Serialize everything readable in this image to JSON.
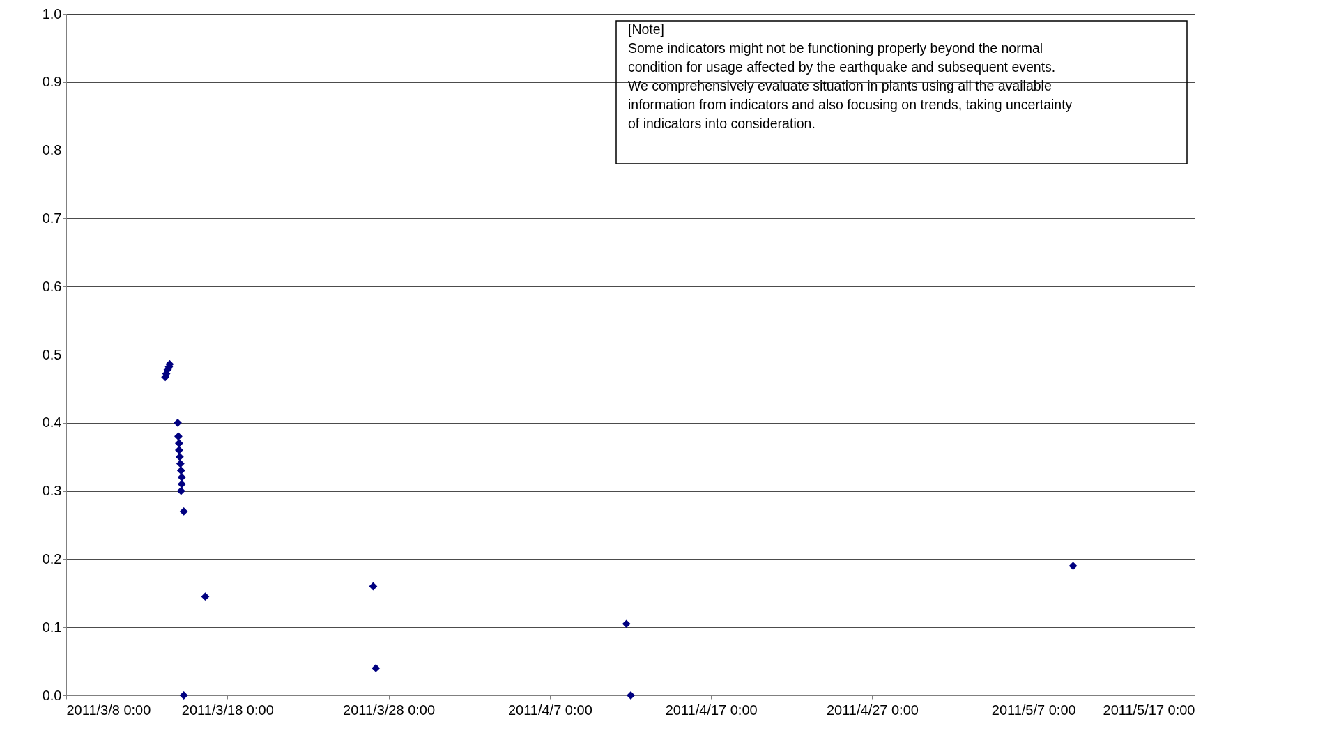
{
  "chart_data": {
    "type": "scatter",
    "marker": "diamond",
    "grid": "y",
    "x": [
      "2011-03-14T03:30",
      "2011-03-14T05:00",
      "2011-03-14T07:00",
      "2011-03-14T09:00",
      "2011-03-14T10:00",
      "2011-03-14T22:00",
      "2011-03-14T23:00",
      "2011-03-15T00:00",
      "2011-03-15T00:00",
      "2011-03-15T01:00",
      "2011-03-15T02:00",
      "2011-03-15T03:00",
      "2011-03-15T04:00",
      "2011-03-15T04:00",
      "2011-03-15T03:00",
      "2011-03-15T07:00",
      "2011-03-15T07:00",
      "2011-03-16T15:00",
      "2011-03-27T01:00",
      "2011-03-27T05:00",
      "2011-04-11T18:00",
      "2011-04-12T00:30",
      "2011-05-09T11:00"
    ],
    "series": [
      {
        "color": "#000080",
        "values": [
          0.467,
          0.472,
          0.478,
          0.482,
          0.486,
          0.4,
          0.38,
          0.37,
          0.36,
          0.35,
          0.34,
          0.33,
          0.32,
          0.31,
          0.3,
          0.27,
          0.0,
          0.145,
          0.16,
          0.04,
          0.105,
          0.0,
          0.19
        ]
      }
    ],
    "xlim": [
      "2011-03-08",
      "2011-05-17"
    ],
    "xticks": [
      {
        "value": "2011-03-08",
        "label": "2011/3/8 0:00"
      },
      {
        "value": "2011-03-18",
        "label": "2011/3/18 0:00"
      },
      {
        "value": "2011-03-28",
        "label": "2011/3/28 0:00"
      },
      {
        "value": "2011-04-07",
        "label": "2011/4/7 0:00"
      },
      {
        "value": "2011-04-17",
        "label": "2011/4/17 0:00"
      },
      {
        "value": "2011-04-27",
        "label": "2011/4/27 0:00"
      },
      {
        "value": "2011-05-07",
        "label": "2011/5/7 0:00"
      },
      {
        "value": "2011-05-17",
        "label": "2011/5/17 0:00"
      }
    ],
    "ylim": [
      0,
      1
    ],
    "yticks": [
      {
        "value": 0,
        "label": "0.0"
      },
      {
        "value": 0.1,
        "label": "0.1"
      },
      {
        "value": 0.2,
        "label": "0.2"
      },
      {
        "value": 0.3,
        "label": "0.3"
      },
      {
        "value": 0.4,
        "label": "0.4"
      },
      {
        "value": 0.5,
        "label": "0.5"
      },
      {
        "value": 0.6,
        "label": "0.6"
      },
      {
        "value": 0.7,
        "label": "0.7"
      },
      {
        "value": 0.8,
        "label": "0.8"
      },
      {
        "value": 0.9,
        "label": "0.9"
      },
      {
        "value": 1,
        "label": "1.0"
      }
    ],
    "annotations": [
      "[Note]\nSome indicators might not be functioning properly beyond the normal\ncondition for usage affected by the earthquake and subsequent events.\nWe comprehensively evaluate situation in plants using all the available\ninformation from indicators and also focusing on trends, taking uncertainty\nof indicators into consideration."
    ]
  }
}
